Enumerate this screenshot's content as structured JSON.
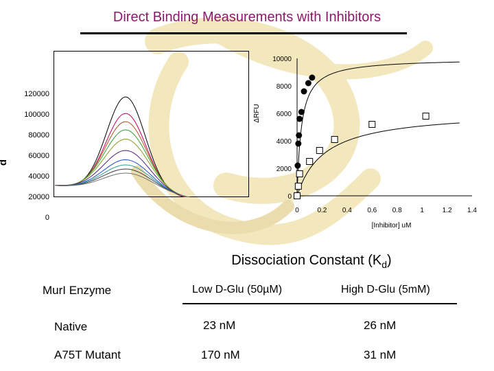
{
  "slide": {
    "title": "Direct Binding Measurements with Inhibitors"
  },
  "spectra_plot": {
    "y_ticks": [
      "120000",
      "100000",
      "80000",
      "60000",
      "40000",
      "20000",
      "0"
    ],
    "y_axis_label": "d",
    "curve_colors": [
      "#000000",
      "#c0005a",
      "#b05020",
      "#30a030",
      "#80a020",
      "#502080",
      "#2050c0",
      "#30a0a0",
      "#404040",
      "#707070"
    ],
    "curve_peaks": [
      118000,
      102000,
      94000,
      86000,
      77000,
      66000,
      57000,
      52000,
      48000,
      44000
    ]
  },
  "chart_data": {
    "type": "scatter",
    "xlabel": "[Inhibitor] uM",
    "ylabel": "ΔRFU",
    "xlim": [
      0,
      1.4
    ],
    "ylim": [
      0,
      10000
    ],
    "x_ticks": [
      "0",
      "0.2",
      "0.4",
      "0.6",
      "0.8",
      "1",
      "1.2",
      "1.4"
    ],
    "y_ticks": [
      "10000",
      "8000",
      "6000",
      "4000",
      "2000",
      "0"
    ],
    "grid": false,
    "series": [
      {
        "marker": "filled-circle",
        "x": [
          0.0,
          0.005,
          0.01,
          0.015,
          0.02,
          0.035,
          0.055,
          0.09,
          0.12
        ],
        "y": [
          0,
          2200,
          3800,
          4400,
          5600,
          6100,
          7600,
          8200,
          8600
        ],
        "fit_plateau": 10000
      },
      {
        "marker": "open-square",
        "x": [
          0.0,
          0.01,
          0.02,
          0.1,
          0.18,
          0.3,
          0.6,
          1.03
        ],
        "y": [
          0,
          700,
          1600,
          2500,
          3300,
          4100,
          5200,
          5800
        ],
        "fit_plateau": 6200
      }
    ]
  },
  "dissociation_table": {
    "title_main": "Dissociation Constant (K",
    "title_sub": "d",
    "title_end": ")",
    "headers": [
      "MurI Enzyme",
      "Low D-Glu (50µM)",
      "High D-Glu (5mM)"
    ],
    "rows": [
      [
        "Native",
        "23 nM",
        "26 nM"
      ],
      [
        "A75T Mutant",
        "170 nM",
        "31 nM"
      ]
    ]
  }
}
